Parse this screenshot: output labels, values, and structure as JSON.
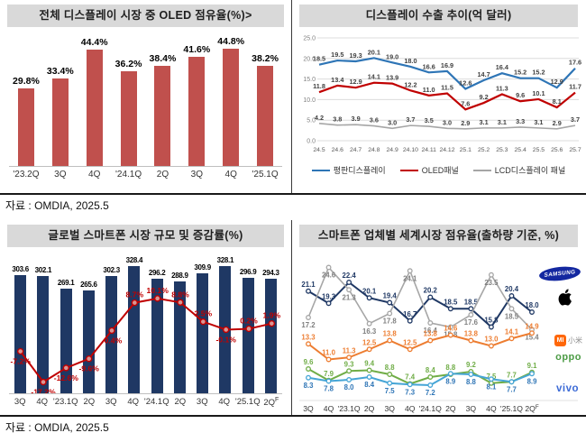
{
  "sources": {
    "row1": "자료 : OMDIA, 2025.5",
    "row2": "자료 : OMDIA, 2025.5"
  },
  "colors": {
    "bar_red": "#C0504D",
    "bar_navy": "#1F3864",
    "line_blue": "#2E75B6",
    "line_red": "#C00000",
    "line_gray": "#A6A6A6",
    "orange": "#ED7D31",
    "green": "#70AD47",
    "teal": "#3F9FD0",
    "title_bg": "#D9D9D9"
  },
  "logos": {
    "samsung_text": "SAMSUNG",
    "mi_text": "MI",
    "mi_cn_text": "小米",
    "oppo_text": "oppo",
    "vivo_text": "vivo"
  },
  "chart_data": [
    {
      "id": "chart1",
      "type": "bar",
      "title": "전체 디스플레이 시장 중 OLED 점유율(%)>",
      "categories": [
        "'23.2Q",
        "3Q",
        "4Q",
        "'24.1Q",
        "2Q",
        "3Q",
        "4Q",
        "'25.1Q"
      ],
      "values": [
        29.8,
        33.4,
        44.4,
        36.2,
        38.4,
        41.6,
        44.8,
        38.2
      ],
      "labels": [
        "29.8%",
        "33.4%",
        "44.4%",
        "36.2%",
        "38.4%",
        "41.6%",
        "44.8%",
        "38.2%"
      ],
      "bar_color": "#C0504D",
      "ylim": [
        0,
        50
      ],
      "grid": false
    },
    {
      "id": "chart2",
      "type": "line",
      "title": "디스플레이 수출 추이(억 달러)",
      "x": [
        "24.5",
        "24.6",
        "24.7",
        "24.8",
        "24.9",
        "24.10",
        "24.11",
        "24.12",
        "25.1",
        "25.2",
        "25.3",
        "25.4",
        "25.5",
        "25.6",
        "25.7"
      ],
      "ylim": [
        0,
        25
      ],
      "yticks": [
        0,
        5,
        10,
        15,
        20,
        25
      ],
      "ytick_labels": [
        "0.0",
        "5.0",
        "10.0",
        "15.0",
        "20.0",
        "25.0"
      ],
      "grid": true,
      "legend_position": "bottom",
      "series": [
        {
          "name": "평판디스플레이",
          "color": "#2E75B6",
          "values": [
            18.5,
            19.5,
            19.3,
            20.1,
            19.0,
            18.0,
            16.6,
            16.9,
            12.6,
            14.7,
            16.4,
            15.2,
            15.2,
            12.9,
            17.6
          ]
        },
        {
          "name": "OLED패널",
          "color": "#C00000",
          "values": [
            11.8,
            13.4,
            12.9,
            14.1,
            13.9,
            12.2,
            11.0,
            11.5,
            7.6,
            9.2,
            11.3,
            9.6,
            10.1,
            8.1,
            11.7
          ]
        },
        {
          "name": "LCD디스플레이 패널",
          "color": "#A6A6A6",
          "values": [
            4.2,
            3.8,
            3.9,
            3.6,
            3.0,
            3.7,
            3.5,
            3.0,
            2.9,
            3.1,
            3.1,
            3.3,
            3.1,
            2.9,
            3.7
          ]
        }
      ]
    },
    {
      "id": "chart3",
      "type": "bar+line",
      "title": "글로벌 스마트폰 시장 규모 및 증감률(%)",
      "categories": [
        "3Q",
        "4Q",
        "'23.1Q",
        "2Q",
        "3Q",
        "4Q",
        "'24.1Q",
        "2Q",
        "3Q",
        "4Q",
        "'25.1Q",
        "2Q"
      ],
      "forecast_index": 11,
      "forecast_mark": "F",
      "bars": [
        303.6,
        302.1,
        269.1,
        265.6,
        302.3,
        328.4,
        296.2,
        288.9,
        309.9,
        328.1,
        296.9,
        294.3
      ],
      "bar_labels": [
        "303.6",
        "302.1",
        "269.1",
        "265.6",
        "302.3",
        "328.4",
        "296.2",
        "288.9",
        "309.9",
        "328.1",
        "296.9",
        "294.3"
      ],
      "line": [
        -7.2,
        -17.2,
        -12.6,
        -9.6,
        -0.4,
        8.7,
        10.1,
        8.8,
        2.5,
        -0.1,
        0.2,
        1.9
      ],
      "line_labels": [
        "-7.2%",
        "-17.2%",
        "-12.6%",
        "-9.6%",
        "-0.4%",
        "8.7%",
        "10.1%",
        "8.8%",
        "2.5%",
        "-0.1%",
        "0.2%",
        "1.9%"
      ],
      "bar_color": "#1F3864",
      "line_color": "#C00000"
    },
    {
      "id": "chart4",
      "type": "line",
      "title": "스마트폰 업체별 세계시장 점유율(출하량 기준, %)",
      "x": [
        "3Q",
        "4Q",
        "'23.1Q",
        "2Q",
        "3Q",
        "4Q",
        "'24.1Q",
        "2Q",
        "3Q",
        "4Q",
        "'25.1Q",
        "2Q"
      ],
      "forecast_index": 11,
      "forecast_mark": "F",
      "ylim": [
        6,
        26
      ],
      "grid": false,
      "legend_position": "right-logos",
      "series": [
        {
          "name": "Samsung",
          "color": "#1F3864",
          "label_side": "above",
          "values": [
            21.1,
            19.3,
            22.4,
            20.1,
            19.4,
            16.7,
            20.2,
            18.5,
            18.5,
            15.8,
            20.4,
            18.0
          ]
        },
        {
          "name": "Apple",
          "color": "#A6A6A6",
          "label_color": "#7F7F7F",
          "label_side": "below",
          "values": [
            17.2,
            24.6,
            21.3,
            16.3,
            17.8,
            24.1,
            16.4,
            15.8,
            17.6,
            23.5,
            18.5,
            15.4
          ]
        },
        {
          "name": "Xiaomi",
          "color": "#ED7D31",
          "label_side": "above",
          "values": [
            13.3,
            11.0,
            11.3,
            12.5,
            13.8,
            12.5,
            13.8,
            14.6,
            13.8,
            13.0,
            14.1,
            14.9
          ]
        },
        {
          "name": "OPPO",
          "color": "#70AD47",
          "label_side": "above",
          "values": [
            9.6,
            7.9,
            9.3,
            9.4,
            8.8,
            7.4,
            8.4,
            8.8,
            9.2,
            7.5,
            7.7,
            9.1
          ]
        },
        {
          "name": "vivo",
          "color": "#45A5D6",
          "label_color": "#2E75B6",
          "label_side": "below",
          "values": [
            8.3,
            7.8,
            8.0,
            8.4,
            7.5,
            7.3,
            7.2,
            8.9,
            8.8,
            8.1,
            7.7,
            8.9
          ]
        }
      ]
    }
  ]
}
